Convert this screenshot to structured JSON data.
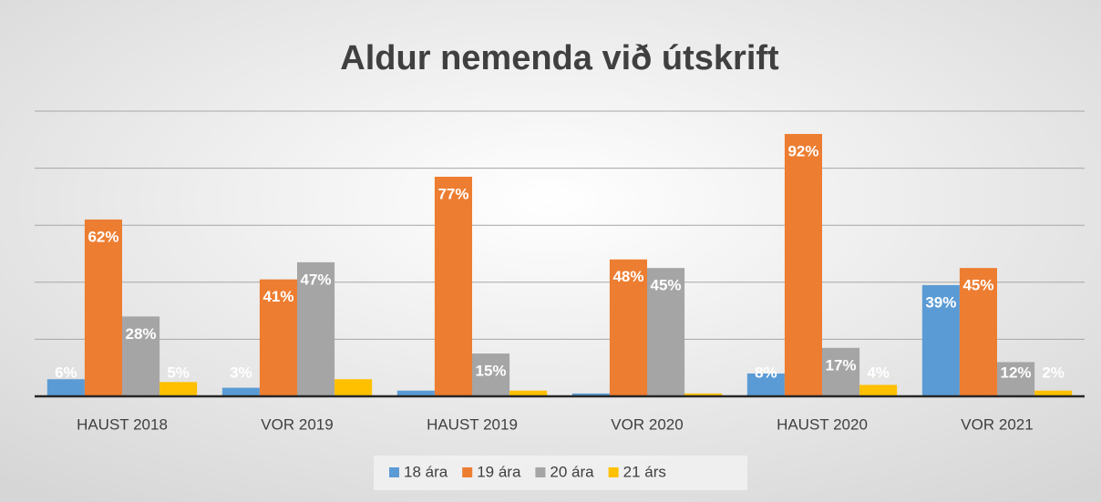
{
  "chart_data": {
    "type": "bar",
    "title": "Aldur nemenda við útskrift",
    "categories": [
      "HAUST 2018",
      "VOR 2019",
      "HAUST 2019",
      "VOR 2020",
      "HAUST 2020",
      "VOR 2021"
    ],
    "series": [
      {
        "name": "18 ára",
        "color": "#5b9bd5",
        "values": [
          6,
          3,
          2,
          1,
          8,
          39
        ],
        "value_labels": [
          "6%",
          "3%",
          null,
          null,
          "8%",
          "39%"
        ]
      },
      {
        "name": "19 ára",
        "color": "#ed7d31",
        "values": [
          62,
          41,
          77,
          48,
          92,
          45
        ],
        "value_labels": [
          "62%",
          "41%",
          "77%",
          "48%",
          "92%",
          "45%"
        ]
      },
      {
        "name": "20 ára",
        "color": "#a5a5a5",
        "values": [
          28,
          47,
          15,
          45,
          17,
          12
        ],
        "value_labels": [
          "28%",
          "47%",
          "15%",
          "45%",
          "17%",
          "12%"
        ]
      },
      {
        "name": "21 árs",
        "color": "#ffc000",
        "values": [
          5,
          6,
          2,
          1,
          4,
          2
        ],
        "value_labels": [
          "5%",
          null,
          null,
          null,
          "4%",
          "2%"
        ]
      }
    ],
    "ylim": [
      0,
      100
    ],
    "yticks": [
      0,
      20,
      40,
      60,
      80,
      100
    ],
    "grid": true,
    "legend": "bottom"
  }
}
